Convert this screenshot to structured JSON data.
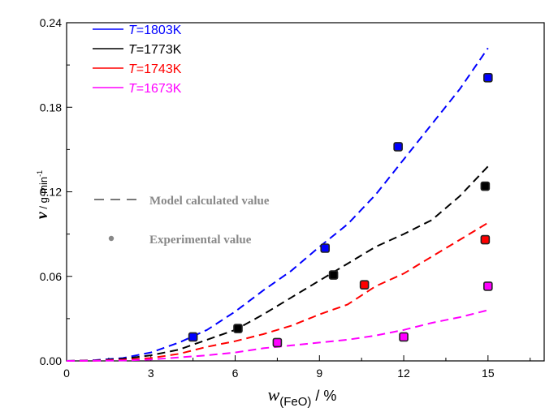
{
  "chart_data": {
    "type": "line",
    "xlabel": {
      "main": "w",
      "sub": "(FeO)",
      "unit": " / %"
    },
    "ylabel": {
      "main": "v",
      "unit": " / g·min",
      "sup": "-1"
    },
    "xlim": [
      0,
      17
    ],
    "ylim": [
      0,
      0.24
    ],
    "x_ticks": [
      0,
      3,
      6,
      9,
      12,
      15
    ],
    "y_ticks": [
      0.0,
      0.06,
      0.12,
      0.18,
      0.24
    ],
    "x_tick_labels": [
      "0",
      "3",
      "6",
      "9",
      "12",
      "15"
    ],
    "y_tick_labels": [
      "0.00",
      "0.06",
      "0.12",
      "0.18",
      "0.24"
    ],
    "grid": false,
    "legend_position": "top-left",
    "series": [
      {
        "name_var": "T",
        "name_rest": "=1803K",
        "color": "#0000ff",
        "text_color": "#0000ff",
        "model": [
          [
            0,
            0
          ],
          [
            1,
            0.0005
          ],
          [
            2,
            0.002
          ],
          [
            3,
            0.006
          ],
          [
            4,
            0.013
          ],
          [
            5,
            0.022
          ],
          [
            6,
            0.035
          ],
          [
            7,
            0.05
          ],
          [
            8,
            0.064
          ],
          [
            9,
            0.081
          ],
          [
            10,
            0.097
          ],
          [
            11,
            0.118
          ],
          [
            12,
            0.143
          ],
          [
            13,
            0.168
          ],
          [
            14,
            0.193
          ],
          [
            15,
            0.222
          ]
        ],
        "experimental": [
          [
            4.5,
            0.017
          ],
          [
            9.2,
            0.08
          ],
          [
            11.8,
            0.152
          ],
          [
            15,
            0.201
          ]
        ]
      },
      {
        "name_var": "T",
        "name_rest": "=1773K",
        "color": "#000000",
        "text_color": "#000000",
        "model": [
          [
            0,
            0
          ],
          [
            1,
            0.0003
          ],
          [
            2,
            0.0015
          ],
          [
            3,
            0.004
          ],
          [
            4,
            0.008
          ],
          [
            5,
            0.015
          ],
          [
            6,
            0.022
          ],
          [
            7,
            0.033
          ],
          [
            8,
            0.045
          ],
          [
            9,
            0.057
          ],
          [
            10,
            0.069
          ],
          [
            11,
            0.081
          ],
          [
            12,
            0.09
          ],
          [
            13,
            0.1
          ],
          [
            14,
            0.117
          ],
          [
            15,
            0.138
          ]
        ],
        "experimental": [
          [
            6.1,
            0.023
          ],
          [
            9.5,
            0.061
          ],
          [
            14.9,
            0.124
          ]
        ]
      },
      {
        "name_var": "T",
        "name_rest": "=1743K",
        "color": "#ff0000",
        "text_color": "#ff0000",
        "model": [
          [
            0,
            0
          ],
          [
            1,
            0.0002
          ],
          [
            2,
            0.0008
          ],
          [
            3,
            0.002
          ],
          [
            4,
            0.005
          ],
          [
            5,
            0.01
          ],
          [
            6,
            0.014
          ],
          [
            7,
            0.019
          ],
          [
            8,
            0.025
          ],
          [
            9,
            0.033
          ],
          [
            10,
            0.04
          ],
          [
            11,
            0.053
          ],
          [
            12,
            0.062
          ],
          [
            13,
            0.074
          ],
          [
            14,
            0.086
          ],
          [
            15,
            0.098
          ]
        ],
        "experimental": [
          [
            10.6,
            0.054
          ],
          [
            14.9,
            0.086
          ]
        ]
      },
      {
        "name_var": "T",
        "name_rest": "=1673K",
        "color": "#ff00ff",
        "text_color": "#ff00ff",
        "model": [
          [
            0,
            0
          ],
          [
            1,
            0.0001
          ],
          [
            2,
            0.0003
          ],
          [
            3,
            0.001
          ],
          [
            4,
            0.0025
          ],
          [
            5,
            0.004
          ],
          [
            6,
            0.006
          ],
          [
            7,
            0.009
          ],
          [
            8,
            0.011
          ],
          [
            9,
            0.013
          ],
          [
            10,
            0.015
          ],
          [
            11,
            0.018
          ],
          [
            12,
            0.022
          ],
          [
            13,
            0.027
          ],
          [
            14,
            0.031
          ],
          [
            15,
            0.036
          ]
        ],
        "experimental": [
          [
            7.5,
            0.013
          ],
          [
            12,
            0.017
          ],
          [
            15,
            0.053
          ]
        ]
      }
    ],
    "annotations": {
      "model_label": "Model calculated value",
      "experimental_label": "Experimental value"
    }
  }
}
